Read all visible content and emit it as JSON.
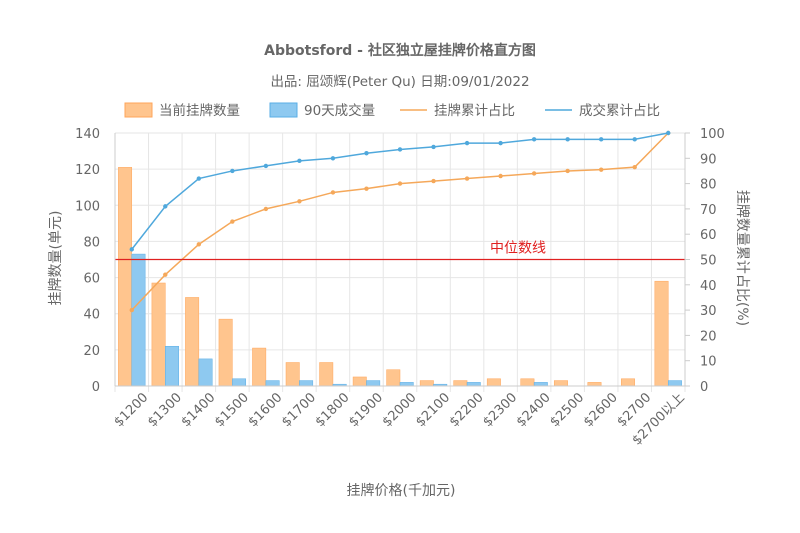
{
  "chart_data": {
    "type": "bar",
    "title": "Abbotsford - 社区独立屋挂牌价格直方图",
    "subtitle": "出品: 屈颂辉(Peter Qu) 日期:09/01/2022",
    "xlabel": "挂牌价格(千加元)",
    "ylabel": "挂牌数量(单元)",
    "y2label": "挂牌数量累计占比(%)",
    "ylim": [
      0,
      140
    ],
    "y2lim": [
      0,
      100
    ],
    "grid": true,
    "legend_position": "top",
    "categories": [
      "$1200",
      "$1300",
      "$1400",
      "$1500",
      "$1600",
      "$1700",
      "$1800",
      "$1900",
      "$2000",
      "$2100",
      "$2200",
      "$2300",
      "$2400",
      "$2500",
      "$2600",
      "$2700",
      "$2700以上"
    ],
    "series": [
      {
        "name": "当前挂牌数量",
        "type": "bar",
        "axis": "left",
        "color": "#ffc58e",
        "stroke": "#ffa559",
        "values": [
          121,
          57,
          49,
          37,
          21,
          13,
          13,
          5,
          9,
          3,
          3,
          4,
          4,
          3,
          2,
          4,
          58
        ]
      },
      {
        "name": "90天成交量",
        "type": "bar",
        "axis": "left",
        "color": "#8ec9f0",
        "stroke": "#5aaee6",
        "values": [
          73,
          22,
          15,
          4,
          3,
          3,
          1,
          3,
          2,
          1,
          2,
          0,
          2,
          0,
          0,
          0,
          3
        ]
      },
      {
        "name": "挂牌累计占比",
        "type": "line",
        "axis": "right",
        "color": "#f5a85a",
        "values": [
          30,
          44,
          56,
          65,
          70,
          73,
          76.5,
          78,
          80,
          81,
          82,
          83,
          84,
          85,
          85.5,
          86.5,
          100
        ]
      },
      {
        "name": "成交累计占比",
        "type": "line",
        "axis": "right",
        "color": "#4fa8dc",
        "values": [
          54,
          71,
          82,
          85,
          87,
          89,
          90,
          92,
          93.5,
          94.5,
          96,
          96,
          97.5,
          97.5,
          97.5,
          97.5,
          100
        ]
      }
    ],
    "median_line": {
      "label": "中位数线",
      "value": 50,
      "axis": "right",
      "color": "#e02020"
    },
    "y_ticks": [
      0,
      20,
      40,
      60,
      80,
      100,
      120,
      140
    ],
    "y2_ticks": [
      0,
      10,
      20,
      30,
      40,
      50,
      60,
      70,
      80,
      90,
      100
    ]
  }
}
